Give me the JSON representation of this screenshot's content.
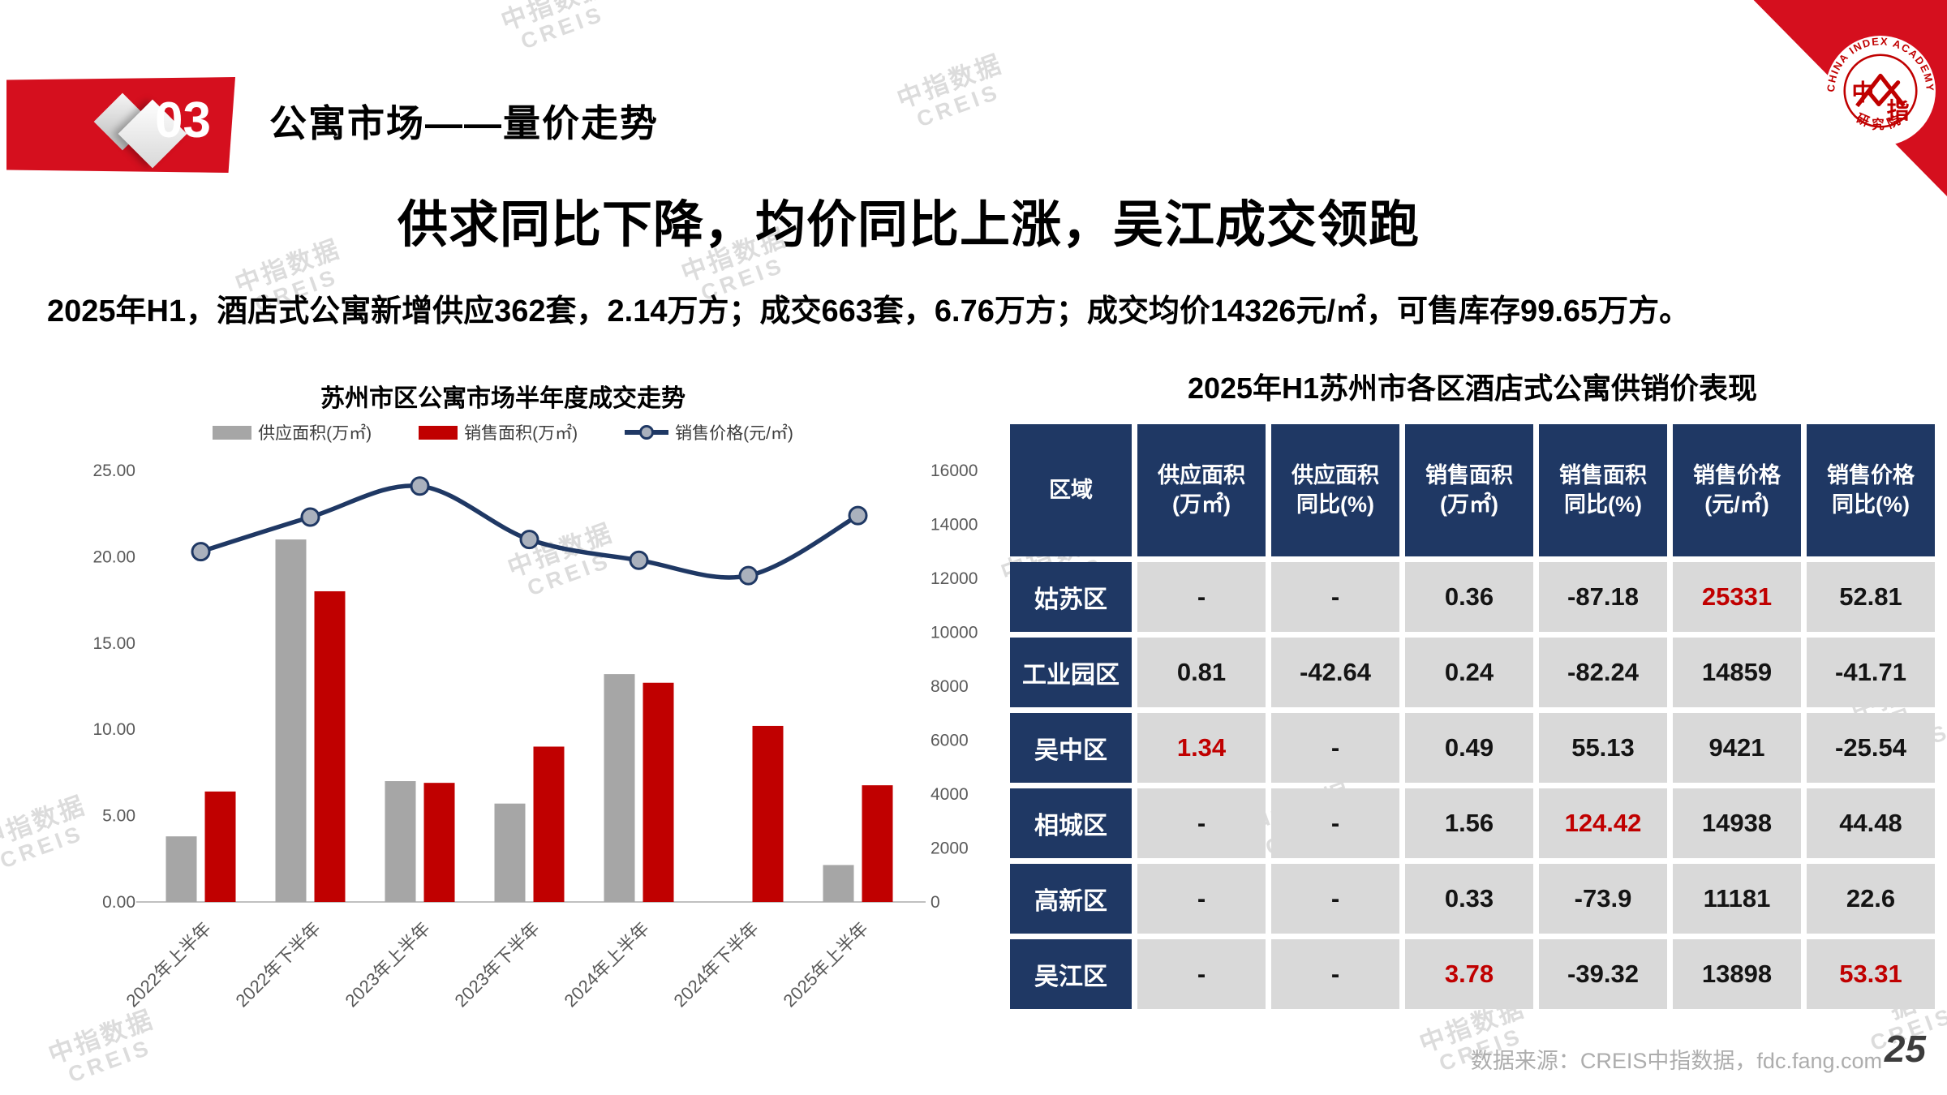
{
  "header": {
    "badge": "03",
    "section_title": "公寓市场——量价走势"
  },
  "heading": "供求同比下降，均价同比上涨，吴江成交领跑",
  "subtitle": "2025年H1，酒店式公寓新增供应362套，2.14万方；成交663套，6.76万方；成交均价14326元/㎡，可售库存99.65万方。",
  "watermark": {
    "line1": "中指数据",
    "line2": "CREIS"
  },
  "logo": {
    "arc_text": "CHINA INDEX ACADEMY",
    "center_text": "中指",
    "bottom_text": "研究院"
  },
  "chart_data": {
    "type": "bar",
    "title": "苏州市区公寓市场半年度成交走势",
    "categories": [
      "2022年上半年",
      "2022年下半年",
      "2023年上半年",
      "2023年下半年",
      "2024年上半年",
      "2024年下半年",
      "2025年上半年"
    ],
    "series": [
      {
        "name": "供应面积(万㎡)",
        "type": "bar",
        "axis": "left",
        "color": "#a6a6a6",
        "values": [
          3.8,
          21.0,
          7.0,
          5.7,
          13.2,
          0,
          2.14
        ]
      },
      {
        "name": "销售面积(万㎡)",
        "type": "bar",
        "axis": "left",
        "color": "#c00000",
        "values": [
          6.4,
          18.0,
          6.9,
          9.0,
          12.7,
          10.2,
          6.76
        ]
      },
      {
        "name": "销售价格(元/㎡)",
        "type": "line",
        "axis": "right",
        "color": "#1f3864",
        "values": [
          12990,
          14270,
          15420,
          13440,
          12670,
          12100,
          14326
        ]
      }
    ],
    "left_axis": {
      "min": 0,
      "max": 25,
      "step": 5,
      "tick_format": "0.00"
    },
    "right_axis": {
      "min": 0,
      "max": 16000,
      "step": 2000,
      "tick_format": "0"
    },
    "grid": false,
    "legend_position": "top"
  },
  "table": {
    "title": "2025年H1苏州市各区酒店式公寓供销价表现",
    "headers": [
      [
        "区域"
      ],
      [
        "供应面积",
        "(万㎡)"
      ],
      [
        "供应面积",
        "同比(%)"
      ],
      [
        "销售面积",
        "(万㎡)"
      ],
      [
        "销售面积",
        "同比(%)"
      ],
      [
        "销售价格",
        "(元/㎡)"
      ],
      [
        "销售价格",
        "同比(%)"
      ]
    ],
    "rows": [
      {
        "region": "姑苏区",
        "cells": [
          "-",
          "-",
          "0.36",
          "-87.18",
          "25331",
          "52.81"
        ],
        "red": [
          4
        ]
      },
      {
        "region": "工业园区",
        "cells": [
          "0.81",
          "-42.64",
          "0.24",
          "-82.24",
          "14859",
          "-41.71"
        ],
        "red": []
      },
      {
        "region": "吴中区",
        "cells": [
          "1.34",
          "-",
          "0.49",
          "55.13",
          "9421",
          "-25.54"
        ],
        "red": [
          0
        ]
      },
      {
        "region": "相城区",
        "cells": [
          "-",
          "-",
          "1.56",
          "124.42",
          "14938",
          "44.48"
        ],
        "red": [
          3
        ]
      },
      {
        "region": "高新区",
        "cells": [
          "-",
          "-",
          "0.33",
          "-73.9",
          "11181",
          "22.6"
        ],
        "red": []
      },
      {
        "region": "吴江区",
        "cells": [
          "-",
          "-",
          "3.78",
          "-39.32",
          "13898",
          "53.31"
        ],
        "red": [
          2,
          5
        ]
      }
    ]
  },
  "footer": {
    "source": "数据来源：CREIS中指数据，fdc.fang.com",
    "page": "25"
  }
}
